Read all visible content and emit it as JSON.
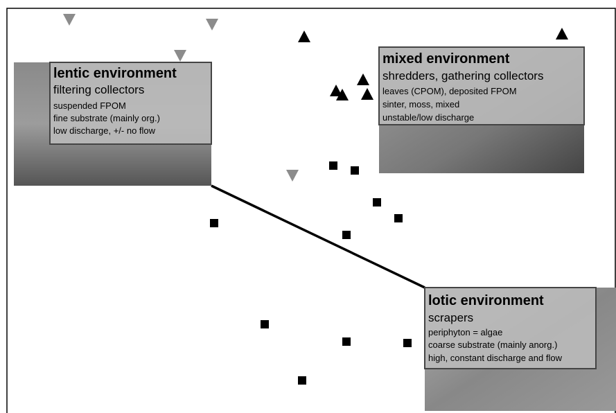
{
  "boxes": [
    {
      "title": "lentic environment",
      "subtitle": "filtering collectors",
      "lines": [
        "suspended FPOM",
        "fine substrate (mainly org.)",
        "low discharge, +/- no flow"
      ]
    },
    {
      "title": "mixed environment",
      "subtitle": "shredders, gathering collectors",
      "lines": [
        "leaves (CPOM), deposited FPOM",
        "sinter, moss, mixed",
        "unstable/low discharge"
      ]
    },
    {
      "title": "lotic environment",
      "subtitle": "scrapers",
      "lines": [
        "periphyton = algae",
        "coarse substrate (mainly anorg.)",
        "high, constant discharge and flow"
      ]
    }
  ]
}
